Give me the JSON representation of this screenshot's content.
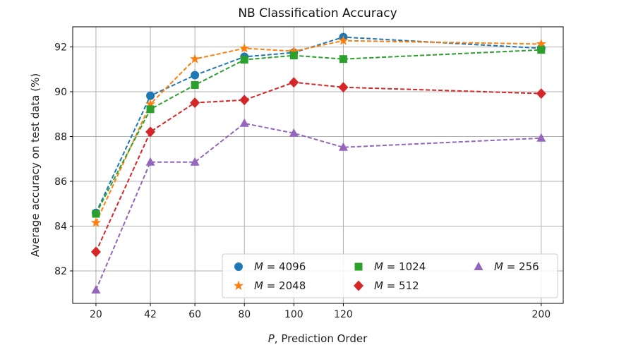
{
  "chart_data": {
    "type": "line",
    "title": "NB Classification Accuracy",
    "xlabel_var": "P",
    "xlabel": ", Prediction Order",
    "ylabel": "Average accuracy on test data (%)",
    "x": [
      20,
      42,
      60,
      80,
      100,
      120,
      200
    ],
    "xticks": [
      "20",
      "42",
      "60",
      "80",
      "100",
      "120",
      "200"
    ],
    "yticks": [
      "82",
      "84",
      "86",
      "88",
      "90",
      "92"
    ],
    "xlim": [
      10.6,
      208.9
    ],
    "ylim": [
      80.55,
      92.9
    ],
    "grid": true,
    "legend_placement": "lower-right",
    "series": [
      {
        "name": "M = 4096",
        "var": "M",
        "label": " = 4096",
        "color": "#1f77b4",
        "marker": "circle",
        "values": [
          84.59,
          89.82,
          90.74,
          91.56,
          91.75,
          92.44,
          91.94
        ]
      },
      {
        "name": "M = 2048",
        "var": "M",
        "label": " = 2048",
        "color": "#ff7f0e",
        "marker": "star",
        "values": [
          84.15,
          89.45,
          91.46,
          91.94,
          91.81,
          92.28,
          92.13
        ]
      },
      {
        "name": "M = 1024",
        "var": "M",
        "label": " = 1024",
        "color": "#2ca02c",
        "marker": "square",
        "values": [
          84.55,
          89.22,
          90.3,
          91.43,
          91.62,
          91.46,
          91.87
        ]
      },
      {
        "name": "M = 512",
        "var": "M",
        "label": " = 512",
        "color": "#d62728",
        "marker": "diamond",
        "values": [
          82.85,
          88.21,
          89.51,
          89.63,
          90.42,
          90.2,
          89.92
        ]
      },
      {
        "name": "M = 256",
        "var": "M",
        "label": " = 256",
        "color": "#9467bd",
        "marker": "triangle",
        "values": [
          81.15,
          86.86,
          86.86,
          88.59,
          88.15,
          87.52,
          87.93
        ]
      }
    ]
  }
}
